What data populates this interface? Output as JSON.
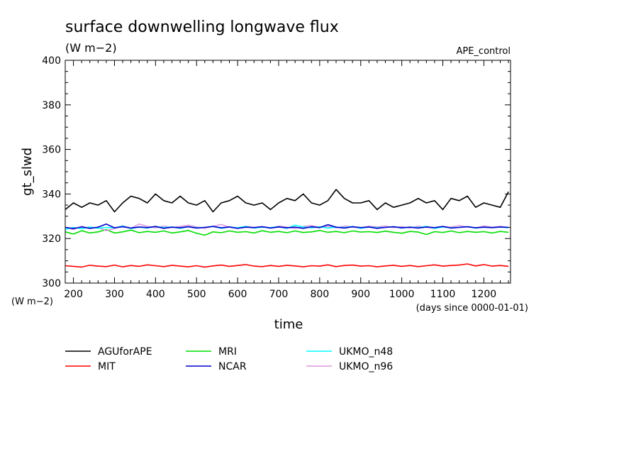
{
  "chart_data": {
    "type": "line",
    "title": "surface downwelling longwave flux",
    "units": "(W m−2)",
    "experiment": "APE_control",
    "xlabel": "time",
    "x_units": "(days since 0000-01-01)",
    "ylabel": "gt_slwd",
    "y_units": "(W m−2)",
    "xlim": [
      180,
      1265
    ],
    "ylim": [
      300,
      400
    ],
    "x_ticks": [
      200,
      300,
      400,
      500,
      600,
      700,
      800,
      900,
      1000,
      1100,
      1200
    ],
    "y_ticks": [
      300,
      320,
      340,
      360,
      380,
      400
    ],
    "grid": false,
    "legend_placement": "bottom-left",
    "series": [
      {
        "name": "AGUforAPE",
        "color": "#000000",
        "x": [
          180,
          200,
          220,
          240,
          260,
          280,
          300,
          320,
          340,
          360,
          380,
          400,
          420,
          440,
          460,
          480,
          500,
          520,
          540,
          560,
          580,
          600,
          620,
          640,
          660,
          680,
          700,
          720,
          740,
          760,
          780,
          800,
          820,
          840,
          860,
          880,
          900,
          920,
          940,
          960,
          980,
          1000,
          1020,
          1040,
          1060,
          1080,
          1100,
          1120,
          1140,
          1160,
          1180,
          1200,
          1220,
          1240,
          1260
        ],
        "values": [
          333,
          336,
          334,
          336,
          335,
          337,
          332,
          336,
          339,
          338,
          336,
          340,
          337,
          336,
          339,
          336,
          335,
          337,
          332,
          336,
          337,
          339,
          336,
          335,
          336,
          333,
          336,
          338,
          337,
          340,
          336,
          335,
          337,
          342,
          338,
          336,
          336,
          337,
          333,
          336,
          334,
          335,
          336,
          338,
          336,
          337,
          333,
          338,
          337,
          339,
          334,
          336,
          335,
          334,
          341
        ]
      },
      {
        "name": "MIT",
        "color": "#ff0000",
        "x": [
          180,
          200,
          220,
          240,
          260,
          280,
          300,
          320,
          340,
          360,
          380,
          400,
          420,
          440,
          460,
          480,
          500,
          520,
          540,
          560,
          580,
          600,
          620,
          640,
          660,
          680,
          700,
          720,
          740,
          760,
          780,
          800,
          820,
          840,
          860,
          880,
          900,
          920,
          940,
          960,
          980,
          1000,
          1020,
          1040,
          1060,
          1080,
          1100,
          1120,
          1140,
          1160,
          1180,
          1200,
          1220,
          1240,
          1260
        ],
        "values": [
          307.8,
          307.5,
          307.2,
          308.0,
          307.6,
          307.4,
          308.1,
          307.3,
          307.9,
          307.5,
          308.2,
          307.8,
          307.4,
          308.0,
          307.6,
          307.3,
          307.8,
          307.2,
          307.7,
          308.1,
          307.5,
          307.9,
          308.3,
          307.6,
          307.4,
          307.9,
          307.5,
          308.0,
          307.7,
          307.3,
          307.8,
          307.6,
          308.2,
          307.4,
          307.9,
          308.1,
          307.6,
          307.8,
          307.3,
          307.7,
          308.0,
          307.5,
          307.9,
          307.4,
          307.8,
          308.2,
          307.6,
          307.9,
          308.1,
          308.6,
          307.7,
          308.3,
          307.6,
          307.9,
          307.5
        ]
      },
      {
        "name": "MRI",
        "color": "#00dd00",
        "x": [
          180,
          200,
          220,
          240,
          260,
          280,
          300,
          320,
          340,
          360,
          380,
          400,
          420,
          440,
          460,
          480,
          500,
          520,
          540,
          560,
          580,
          600,
          620,
          640,
          660,
          680,
          700,
          720,
          740,
          760,
          780,
          800,
          820,
          840,
          860,
          880,
          900,
          920,
          940,
          960,
          980,
          1000,
          1020,
          1040,
          1060,
          1080,
          1100,
          1120,
          1140,
          1160,
          1180,
          1200,
          1220,
          1240,
          1260
        ],
        "values": [
          323,
          322,
          323.5,
          322.5,
          323,
          324,
          322.5,
          323,
          323.8,
          322.6,
          323.2,
          322.8,
          323.4,
          322.5,
          323,
          323.6,
          322.4,
          321.5,
          323,
          322.6,
          323.4,
          322.8,
          323.1,
          322.5,
          323.5,
          322.8,
          323.2,
          322.6,
          323.4,
          322.7,
          323,
          323.6,
          322.8,
          323.2,
          322.6,
          323.4,
          322.9,
          323.1,
          322.7,
          323.3,
          322.8,
          322.4,
          323.2,
          322.9,
          321.8,
          323.1,
          322.7,
          323.4,
          322.6,
          323.2,
          322.8,
          323.1,
          322.5,
          323.2,
          322.8
        ]
      },
      {
        "name": "NCAR",
        "color": "#0000cc",
        "x": [
          180,
          200,
          220,
          240,
          260,
          280,
          300,
          320,
          340,
          360,
          380,
          400,
          420,
          440,
          460,
          480,
          500,
          520,
          540,
          560,
          580,
          600,
          620,
          640,
          660,
          680,
          700,
          720,
          740,
          760,
          780,
          800,
          820,
          840,
          860,
          880,
          900,
          920,
          940,
          960,
          980,
          1000,
          1020,
          1040,
          1060,
          1080,
          1100,
          1120,
          1140,
          1160,
          1180,
          1200,
          1220,
          1240,
          1260
        ],
        "values": [
          325,
          324.5,
          325.2,
          324.6,
          325.1,
          326.5,
          324.8,
          325.3,
          324.7,
          325.2,
          324.9,
          325.4,
          324.6,
          325.1,
          324.8,
          325.3,
          324.7,
          325,
          325.4,
          324.8,
          325.2,
          324.6,
          325.1,
          324.9,
          325.3,
          324.7,
          325.2,
          324.8,
          325.1,
          324.6,
          325.3,
          324.9,
          326.2,
          325.1,
          324.7,
          325.3,
          324.9,
          325.2,
          324.6,
          325,
          325.3,
          324.8,
          325.1,
          324.7,
          325.2,
          324.9,
          325.4,
          324.7,
          325,
          325.3,
          324.8,
          325.1,
          324.9,
          325.2,
          325
        ]
      },
      {
        "name": "UKMO_n48",
        "color": "#00ffff",
        "x": [
          180,
          200,
          220,
          240,
          260,
          280,
          300,
          320,
          340,
          360,
          380,
          400,
          420,
          440,
          460,
          480,
          500,
          520,
          540,
          560,
          580,
          600,
          620,
          640,
          660,
          680,
          700,
          720,
          740,
          760,
          780,
          800,
          820,
          840,
          860,
          880,
          900,
          920,
          940,
          960,
          980,
          1000,
          1020,
          1040,
          1060,
          1080,
          1100,
          1120,
          1140,
          1160,
          1180,
          1200,
          1220,
          1240,
          1260
        ],
        "values": [
          324,
          325,
          324.4,
          325.2,
          324.6,
          325,
          324.8,
          325.6,
          324.5,
          325.1,
          324.7,
          325.4,
          324.9,
          325.2,
          324.6,
          325.3,
          324.8,
          325,
          325.5,
          324.6,
          325.2,
          324.8,
          325.4,
          324.7,
          325.1,
          324.9,
          325.3,
          324.6,
          326,
          325.2,
          324.8,
          325.3,
          324.7,
          325.1,
          324.9,
          325.4,
          324.6,
          325.2,
          324.8,
          325,
          325.3,
          324.7,
          325.1,
          324.9,
          325.4,
          324.6,
          325.2,
          324.8,
          325,
          325.3,
          324.7,
          325.1,
          324.9,
          325.2,
          324.8
        ]
      },
      {
        "name": "UKMO_n96",
        "color": "#dd99dd",
        "x": [
          180,
          200,
          220,
          240,
          260,
          280,
          300,
          320,
          340,
          360,
          380,
          400,
          420,
          440,
          460,
          480,
          500,
          520,
          540,
          560,
          580,
          600,
          620,
          640,
          660,
          680,
          700,
          720,
          740,
          760,
          780,
          800,
          820,
          840,
          860,
          880,
          900,
          920,
          940,
          960,
          980,
          1000,
          1020,
          1040,
          1060,
          1080,
          1100,
          1120,
          1140,
          1160,
          1180,
          1200,
          1220,
          1240,
          1260
        ],
        "values": [
          325,
          324,
          325.5,
          324.5,
          325,
          323.5,
          324.5,
          325.8,
          324.6,
          326.5,
          325.4,
          324.8,
          325.6,
          324.9,
          325.4,
          326,
          325.2,
          324.6,
          325.5,
          326.3,
          325.1,
          324.7,
          325.5,
          325,
          325.3,
          324.8,
          325.6,
          325.1,
          324.6,
          325.4,
          325.8,
          325,
          325.4,
          324.8,
          325.6,
          325.1,
          324.7,
          325.5,
          325.2,
          325.6,
          324.9,
          325.3,
          324.7,
          325.5,
          325,
          324.6,
          325.4,
          325.1,
          325.8,
          325.2,
          324.8,
          325.6,
          325.1,
          325.4,
          325
        ]
      }
    ]
  }
}
